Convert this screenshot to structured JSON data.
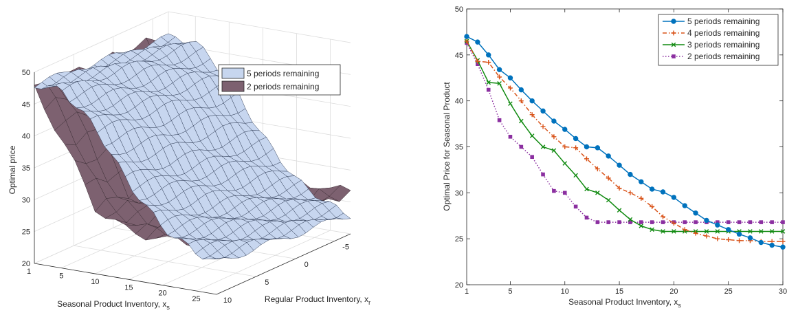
{
  "chart_data": [
    {
      "type": "surface3d",
      "zlabel": "Optimal price",
      "xlabel": "Seasonal Product Inventory, x",
      "xlabel_sub": "s",
      "ylabel": "Regular Product Inventory, x",
      "ylabel_sub": "r",
      "xlim": [
        1,
        28
      ],
      "ylim": [
        -7,
        10
      ],
      "zlim": [
        20,
        50
      ],
      "xticks": [
        1,
        5,
        10,
        15,
        20,
        25
      ],
      "yticks": [
        10,
        5,
        0,
        -5
      ],
      "zticks": [
        20,
        25,
        30,
        35,
        40,
        45,
        50
      ],
      "grid": true,
      "legend_position": "top-right",
      "series": [
        {
          "name": "5 periods remaining",
          "color": "#c7d6ef",
          "z_at_x": {
            "x": [
              1,
              5,
              10,
              15,
              20,
              25,
              28
            ],
            "z": [
              47,
              47,
              42,
              34,
              28,
              25,
              24
            ]
          }
        },
        {
          "name": "2 periods remaining",
          "color": "#7d6170",
          "z_at_x": {
            "x": [
              1,
              5,
              10,
              15,
              20,
              25,
              28
            ],
            "z": [
              47,
              40,
              30,
              27,
              27,
              27,
              27
            ]
          }
        }
      ]
    },
    {
      "type": "line",
      "ylabel": "Optimal Price for Seasonal Product",
      "xlabel": "Seasonal Product Inventory, x",
      "xlabel_sub": "s",
      "xlim": [
        1,
        30
      ],
      "ylim": [
        20,
        50
      ],
      "xticks": [
        1,
        5,
        10,
        15,
        20,
        25,
        30
      ],
      "yticks": [
        20,
        25,
        30,
        35,
        40,
        45,
        50
      ],
      "legend_position": "top-right",
      "x": [
        1,
        2,
        3,
        4,
        5,
        6,
        7,
        8,
        9,
        10,
        11,
        12,
        13,
        14,
        15,
        16,
        17,
        18,
        19,
        20,
        21,
        22,
        23,
        24,
        25,
        26,
        27,
        28,
        29,
        30
      ],
      "series": [
        {
          "name": "5 periods remaining",
          "color": "#0072bd",
          "marker": "circle",
          "dash": "solid",
          "values": [
            47.0,
            46.4,
            45.0,
            43.4,
            42.5,
            41.2,
            40.0,
            38.9,
            37.8,
            36.9,
            35.9,
            35.0,
            34.9,
            34.0,
            33.0,
            32.0,
            31.2,
            30.4,
            30.1,
            29.5,
            28.6,
            27.8,
            27.0,
            26.5,
            26.0,
            25.5,
            25.1,
            24.6,
            24.3,
            24.1
          ]
        },
        {
          "name": "4 periods remaining",
          "color": "#d95319",
          "marker": "plus",
          "dash": "dashdot",
          "values": [
            46.5,
            44.3,
            44.2,
            42.6,
            41.4,
            40.0,
            38.5,
            37.2,
            36.1,
            35.0,
            34.9,
            33.7,
            32.6,
            31.6,
            30.5,
            30.0,
            29.4,
            28.5,
            27.4,
            26.7,
            26.0,
            25.6,
            25.3,
            25.0,
            24.9,
            24.8,
            24.8,
            24.7,
            24.7,
            24.7
          ]
        },
        {
          "name": "3 periods remaining",
          "color": "#108a10",
          "marker": "cross",
          "dash": "solid",
          "values": [
            46.5,
            44.4,
            42.0,
            41.9,
            39.7,
            37.8,
            36.2,
            35.0,
            34.6,
            33.2,
            31.9,
            30.4,
            30.0,
            29.2,
            28.1,
            27.1,
            26.4,
            26.0,
            25.8,
            25.8,
            25.8,
            25.8,
            25.8,
            25.8,
            25.8,
            25.8,
            25.8,
            25.8,
            25.8,
            25.8
          ]
        },
        {
          "name": "2 periods remaining",
          "color": "#8b2fa0",
          "marker": "square",
          "dash": "dotted",
          "values": [
            46.3,
            44.0,
            41.2,
            37.9,
            36.1,
            35.0,
            33.9,
            32.0,
            30.2,
            30.0,
            28.5,
            27.3,
            26.8,
            26.8,
            26.8,
            26.8,
            26.8,
            26.8,
            26.8,
            26.8,
            26.8,
            26.8,
            26.8,
            26.8,
            26.8,
            26.8,
            26.8,
            26.8,
            26.8,
            26.8
          ]
        }
      ]
    }
  ]
}
